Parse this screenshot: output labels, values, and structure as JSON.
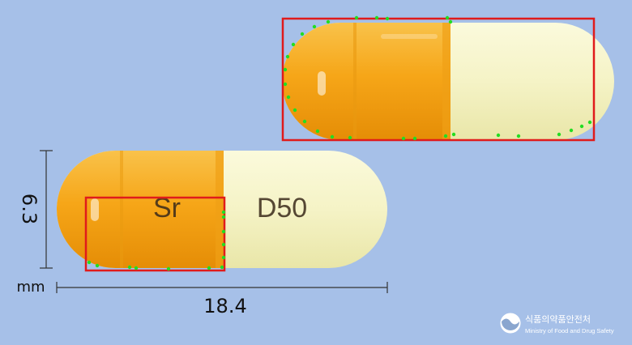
{
  "pill": {
    "imprint_left": "Sr",
    "imprint_right": "D50",
    "colors": {
      "background": "#a6c0e8",
      "orange_cap": "#f6a618",
      "cream_body": "#f5f3c6",
      "annotation_box": "#e01b1b",
      "edge_points": "#22dd22"
    }
  },
  "dimensions": {
    "height_value": "6.3",
    "length_value": "18.4",
    "unit": "mm"
  },
  "logo": {
    "korean": "식품의약품안전처",
    "english": "Ministry of Food and Drug Safety",
    "icon": "mfds-emblem-icon"
  }
}
